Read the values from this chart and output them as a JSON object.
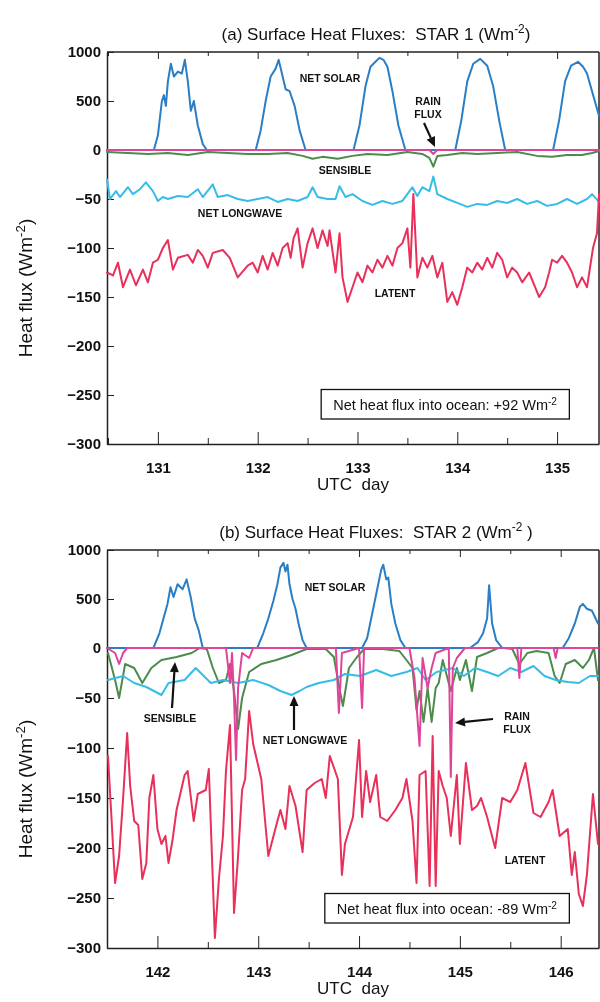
{
  "chart_data": [
    {
      "type": "line",
      "title": "(a) Surface Heat Fluxes:  STAR 1 (Wm$^{-2}$)",
      "tick_labels": "y",
      "xlim": [
        130.49,
        135.42
      ],
      "xticks": [
        {
          "value": 130.5,
          "label": null
        },
        131,
        {
          "value": 131.5,
          "label": null
        },
        132,
        {
          "value": 132.5,
          "label": null
        },
        133,
        {
          "value": 133.5,
          "label": null
        },
        134,
        {
          "value": 134.5,
          "label": null
        },
        135
      ],
      "ylim": [
        0,
        1000
      ],
      "yticks": [
        0,
        500,
        1000
      ],
      "series": [
        {
          "color": "#2a7ec6",
          "x": [
            130.49,
            130.96,
            131.0,
            131.04,
            131.06,
            131.08,
            131.1,
            131.13,
            131.16,
            131.2,
            131.24,
            131.27,
            131.3,
            131.33,
            131.36,
            131.4,
            131.45,
            131.49,
            131.98,
            132.03,
            132.08,
            132.13,
            132.18,
            132.21,
            132.25,
            132.28,
            132.32,
            132.37,
            132.42,
            132.48,
            132.96,
            133.02,
            133.08,
            133.13,
            133.18,
            133.22,
            133.26,
            133.3,
            133.35,
            133.41,
            133.48,
            133.98,
            134.04,
            134.1,
            134.16,
            134.23,
            134.3,
            134.36,
            134.42,
            134.48,
            134.96,
            135.02,
            135.08,
            135.14,
            135.21,
            135.26,
            135.3,
            135.35,
            135.42
          ],
          "values": [
            0,
            0,
            150,
            500,
            560,
            450,
            700,
            880,
            750,
            800,
            780,
            920,
            700,
            400,
            500,
            250,
            60,
            0,
            0,
            200,
            500,
            750,
            830,
            920,
            750,
            620,
            600,
            450,
            200,
            0,
            0,
            250,
            650,
            850,
            900,
            940,
            920,
            850,
            600,
            250,
            0,
            0,
            300,
            700,
            880,
            930,
            860,
            650,
            300,
            0,
            0,
            300,
            700,
            860,
            900,
            850,
            780,
            600,
            350
          ]
        }
      ],
      "annotations": [
        "NET SOLAR",
        "RAIN FLUX"
      ]
    },
    {
      "type": "line",
      "xlabel": "UTC  day",
      "ylabel": "Heat flux (Wm$^{-2}$)",
      "xlim": [
        130.49,
        135.42
      ],
      "xticks": [
        {
          "value": 130.5,
          "label": null
        },
        131,
        {
          "value": 131.5,
          "label": null
        },
        132,
        {
          "value": 132.5,
          "label": null
        },
        133,
        {
          "value": 133.5,
          "label": null
        },
        134,
        {
          "value": 134.5,
          "label": null
        },
        135
      ],
      "ylim": [
        -300,
        0
      ],
      "yticks": [
        -300,
        -250,
        -200,
        -150,
        -100,
        -50
      ],
      "series": [
        {
          "color": "#4b8b4b",
          "x": [
            130.49,
            130.7,
            130.9,
            131.1,
            131.3,
            131.5,
            131.7,
            131.9,
            132.1,
            132.3,
            132.45,
            132.55,
            132.65,
            132.8,
            132.95,
            133.1,
            133.3,
            133.5,
            133.65,
            133.72,
            133.76,
            133.8,
            133.9,
            134.05,
            134.2,
            134.4,
            134.6,
            134.8,
            134.95,
            135.1,
            135.25,
            135.35,
            135.42
          ],
          "values": [
            -2,
            -3,
            -4,
            -3,
            -5,
            -2,
            -3,
            -4,
            -4,
            -3,
            -6,
            -9,
            -7,
            -9,
            -6,
            -4,
            -5,
            -2,
            -4,
            -8,
            -17,
            -6,
            -5,
            -3,
            -4,
            -3,
            -2,
            -6,
            -7,
            -5,
            -5,
            -3,
            -1
          ]
        },
        {
          "color": "#35bde8",
          "x": [
            130.49,
            130.52,
            130.58,
            130.62,
            130.7,
            130.75,
            130.82,
            130.88,
            130.95,
            131.0,
            131.05,
            131.1,
            131.2,
            131.3,
            131.4,
            131.45,
            131.55,
            131.6,
            131.7,
            131.8,
            131.9,
            132.0,
            132.1,
            132.2,
            132.3,
            132.4,
            132.5,
            132.55,
            132.6,
            132.7,
            132.78,
            132.82,
            132.88,
            132.95,
            133.05,
            133.15,
            133.25,
            133.35,
            133.45,
            133.55,
            133.6,
            133.65,
            133.72,
            133.76,
            133.8,
            133.9,
            134.0,
            134.1,
            134.2,
            134.3,
            134.4,
            134.5,
            134.6,
            134.7,
            134.8,
            134.9,
            135.0,
            135.1,
            135.2,
            135.3,
            135.35,
            135.42
          ],
          "values": [
            -30,
            -50,
            -42,
            -48,
            -38,
            -45,
            -40,
            -33,
            -42,
            -52,
            -48,
            -50,
            -47,
            -48,
            -40,
            -48,
            -35,
            -48,
            -46,
            -50,
            -52,
            -50,
            -48,
            -53,
            -50,
            -52,
            -48,
            -38,
            -48,
            -50,
            -50,
            -37,
            -48,
            -45,
            -52,
            -56,
            -52,
            -55,
            -52,
            -38,
            -47,
            -38,
            -42,
            -27,
            -45,
            -50,
            -54,
            -58,
            -55,
            -56,
            -52,
            -54,
            -50,
            -55,
            -52,
            -57,
            -55,
            -50,
            -55,
            -50,
            -45,
            -53
          ]
        },
        {
          "color": "#e8305a",
          "x": [
            130.49,
            130.55,
            130.6,
            130.65,
            130.72,
            130.78,
            130.85,
            130.9,
            130.95,
            131.0,
            131.05,
            131.1,
            131.15,
            131.2,
            131.3,
            131.35,
            131.4,
            131.45,
            131.5,
            131.55,
            131.65,
            131.72,
            131.8,
            131.9,
            131.95,
            132.0,
            132.05,
            132.1,
            132.15,
            132.2,
            132.25,
            132.3,
            132.33,
            132.36,
            132.4,
            132.45,
            132.5,
            132.55,
            132.6,
            132.65,
            132.7,
            132.72,
            132.78,
            132.82,
            132.85,
            132.9,
            132.95,
            133.0,
            133.05,
            133.1,
            133.15,
            133.2,
            133.25,
            133.3,
            133.35,
            133.4,
            133.45,
            133.5,
            133.53,
            133.56,
            133.6,
            133.65,
            133.7,
            133.75,
            133.8,
            133.85,
            133.9,
            133.95,
            134.0,
            134.05,
            134.1,
            134.15,
            134.2,
            134.25,
            134.3,
            134.35,
            134.4,
            134.45,
            134.5,
            134.55,
            134.6,
            134.65,
            134.72,
            134.78,
            134.82,
            134.88,
            134.92,
            134.95,
            135.0,
            135.05,
            135.1,
            135.15,
            135.2,
            135.25,
            135.3,
            135.33,
            135.36,
            135.4,
            135.42
          ],
          "values": [
            -125,
            -128,
            -115,
            -140,
            -122,
            -138,
            -122,
            -135,
            -115,
            -112,
            -100,
            -92,
            -122,
            -110,
            -107,
            -115,
            -102,
            -108,
            -120,
            -105,
            -102,
            -110,
            -130,
            -118,
            -115,
            -125,
            -108,
            -122,
            -105,
            -118,
            -100,
            -95,
            -110,
            -90,
            -80,
            -120,
            -95,
            -80,
            -100,
            -82,
            -98,
            -82,
            -125,
            -85,
            -130,
            -155,
            -140,
            -125,
            -135,
            -118,
            -125,
            -112,
            -120,
            -108,
            -118,
            -100,
            -95,
            -80,
            -120,
            -45,
            -130,
            -110,
            -120,
            -108,
            -130,
            -115,
            -155,
            -145,
            -158,
            -140,
            -120,
            -125,
            -115,
            -122,
            -110,
            -120,
            -105,
            -112,
            -130,
            -120,
            -125,
            -135,
            -125,
            -140,
            -150,
            -140,
            -125,
            -112,
            -115,
            -108,
            -115,
            -125,
            -140,
            -130,
            -140,
            -120,
            -100,
            -85,
            -45
          ]
        },
        {
          "color": "#e0449a",
          "x": [
            130.49,
            131.0,
            131.5,
            132.0,
            132.5,
            133.0,
            133.5,
            133.72,
            133.76,
            133.8,
            134.0,
            134.5,
            135.0,
            135.42
          ],
          "values": [
            0,
            0,
            0,
            0,
            0,
            0,
            0,
            0,
            -4,
            0,
            0,
            0,
            0,
            0
          ]
        }
      ],
      "annotations": [
        "SENSIBLE",
        "NET LONGWAVE",
        "LATENT",
        "Net heat flux into ocean: +92 Wm$^{-2}$"
      ]
    },
    {
      "type": "line",
      "title": "(b) Surface Heat Fluxes:  STAR 2 (Wm$^{-2}$ )",
      "tick_labels": "y",
      "xlim": [
        141.5,
        146.38
      ],
      "xticks": [
        {
          "value": 141.5,
          "label": null
        },
        142,
        {
          "value": 142.5,
          "label": null
        },
        143,
        {
          "value": 143.5,
          "label": null
        },
        144,
        {
          "value": 144.5,
          "label": null
        },
        145,
        {
          "value": 145.5,
          "label": null
        },
        146
      ],
      "ylim": [
        0,
        1000
      ],
      "yticks": [
        0,
        500,
        1000
      ],
      "series": [
        {
          "color": "#2a7ec6",
          "x": [
            141.5,
            141.96,
            142.02,
            142.06,
            142.1,
            142.13,
            142.16,
            142.2,
            142.25,
            142.29,
            142.33,
            142.37,
            142.41,
            142.45,
            142.99,
            143.05,
            143.1,
            143.15,
            143.19,
            143.22,
            143.25,
            143.27,
            143.29,
            143.31,
            143.34,
            143.37,
            143.4,
            143.44,
            143.48,
            144.03,
            144.08,
            144.13,
            144.18,
            144.22,
            144.24,
            144.27,
            144.29,
            144.32,
            144.36,
            144.41,
            144.46,
            145.1,
            145.18,
            145.23,
            145.27,
            145.29,
            145.32,
            145.36,
            145.42,
            146.02,
            146.08,
            146.14,
            146.19,
            146.22,
            146.26,
            146.31,
            146.37
          ],
          "values": [
            0,
            0,
            150,
            300,
            450,
            620,
            520,
            650,
            600,
            700,
            520,
            300,
            180,
            0,
            0,
            150,
            300,
            480,
            650,
            820,
            870,
            780,
            850,
            650,
            500,
            400,
            250,
            80,
            0,
            0,
            100,
            350,
            600,
            800,
            850,
            700,
            720,
            450,
            250,
            80,
            0,
            0,
            60,
            150,
            300,
            640,
            250,
            80,
            0,
            0,
            100,
            250,
            420,
            450,
            400,
            380,
            250
          ]
        }
      ],
      "annotations": [
        "NET SOLAR"
      ]
    },
    {
      "type": "line",
      "xlabel": "UTC  day",
      "ylabel": "Heat flux (Wm$^{-2}$)",
      "xlim": [
        141.5,
        146.38
      ],
      "xticks": [
        {
          "value": 141.5,
          "label": null
        },
        142,
        {
          "value": 142.5,
          "label": null
        },
        143,
        {
          "value": 143.5,
          "label": null
        },
        144,
        {
          "value": 144.5,
          "label": null
        },
        145,
        {
          "value": 145.5,
          "label": null
        },
        146
      ],
      "ylim": [
        -300,
        0
      ],
      "yticks": [
        -300,
        -250,
        -200,
        -150,
        -100,
        -50
      ],
      "series": [
        {
          "color": "#4b8b4b",
          "x": [
            141.51,
            141.58,
            141.62,
            141.68,
            141.77,
            141.85,
            141.94,
            142.04,
            142.19,
            142.34,
            142.42,
            142.49,
            142.55,
            142.61,
            142.68,
            142.72,
            142.76,
            142.8,
            142.84,
            142.91,
            143.03,
            143.18,
            143.33,
            143.48,
            143.67,
            143.75,
            143.81,
            143.84,
            143.9,
            143.98,
            144.05,
            144.24,
            144.4,
            144.47,
            144.53,
            144.57,
            144.6,
            144.64,
            144.68,
            144.72,
            144.76,
            144.79,
            144.83,
            144.91,
            144.97,
            145.0,
            145.06,
            145.12,
            145.17,
            145.27,
            145.38,
            145.44,
            145.52,
            145.59,
            145.67,
            145.76,
            145.88,
            145.94,
            145.99,
            146.05,
            146.14,
            146.22,
            146.28,
            146.33,
            146.37
          ],
          "values": [
            -5,
            -32,
            -50,
            -16,
            -20,
            -35,
            -20,
            -12,
            -9,
            -5,
            0,
            -1,
            -20,
            -35,
            -32,
            -16,
            -43,
            -81,
            -50,
            -24,
            -16,
            -12,
            -7,
            -1,
            -1,
            -9,
            -43,
            -58,
            -20,
            -9,
            -1,
            -1,
            -3,
            -12,
            -20,
            -62,
            -43,
            -74,
            -40,
            -74,
            -40,
            -35,
            -12,
            -43,
            -20,
            -32,
            -12,
            -43,
            -9,
            -5,
            0,
            0,
            -1,
            -16,
            -5,
            -3,
            -5,
            -28,
            -35,
            -16,
            -12,
            -20,
            -12,
            0,
            -32
          ]
        },
        {
          "color": "#35bde8",
          "x": [
            141.51,
            141.66,
            141.77,
            141.89,
            142.04,
            142.11,
            142.27,
            142.38,
            142.46,
            142.53,
            142.65,
            142.8,
            142.95,
            143.1,
            143.22,
            143.33,
            143.41,
            143.48,
            143.6,
            143.75,
            143.86,
            144.01,
            144.17,
            144.32,
            144.47,
            144.58,
            144.66,
            144.77,
            144.93,
            145.04,
            145.15,
            145.27,
            145.38,
            145.5,
            145.61,
            145.73,
            145.84,
            145.95,
            146.07,
            146.18,
            146.29,
            146.37
          ],
          "values": [
            -32,
            -28,
            -35,
            -39,
            -47,
            -35,
            -32,
            -20,
            -28,
            -35,
            -32,
            -35,
            -32,
            -37,
            -43,
            -47,
            -43,
            -39,
            -35,
            -32,
            -26,
            -28,
            -22,
            -28,
            -24,
            -20,
            -32,
            -24,
            -20,
            -28,
            -20,
            -24,
            -28,
            -20,
            -24,
            -18,
            -28,
            -32,
            -34,
            -35,
            -28,
            -28
          ]
        },
        {
          "color": "#e8305a",
          "x": [
            141.51,
            141.54,
            141.58,
            141.62,
            141.66,
            141.7,
            141.73,
            141.77,
            141.81,
            141.85,
            141.89,
            141.92,
            141.96,
            142.0,
            142.04,
            142.08,
            142.11,
            142.15,
            142.19,
            142.27,
            142.3,
            142.36,
            142.4,
            142.48,
            142.51,
            142.57,
            142.61,
            142.65,
            142.68,
            142.72,
            142.76,
            142.8,
            142.84,
            142.87,
            142.91,
            142.95,
            143.03,
            143.1,
            143.18,
            143.22,
            143.27,
            143.31,
            143.37,
            143.44,
            143.48,
            143.56,
            143.63,
            143.67,
            143.71,
            143.79,
            143.83,
            143.86,
            143.94,
            144.0,
            144.03,
            144.07,
            144.11,
            144.17,
            144.21,
            144.28,
            144.36,
            144.43,
            144.47,
            144.53,
            144.57,
            144.6,
            144.66,
            144.7,
            144.73,
            144.76,
            144.79,
            144.83,
            144.87,
            144.91,
            144.97,
            145.0,
            145.06,
            145.12,
            145.17,
            145.21,
            145.27,
            145.35,
            145.42,
            145.5,
            145.57,
            145.65,
            145.73,
            145.8,
            145.88,
            145.92,
            145.99,
            146.07,
            146.11,
            146.14,
            146.18,
            146.22,
            146.26,
            146.32,
            146.37
          ],
          "values": [
            -108,
            -162,
            -235,
            -208,
            -150,
            -85,
            -138,
            -173,
            -177,
            -231,
            -215,
            -150,
            -127,
            -181,
            -196,
            -188,
            -215,
            -192,
            -162,
            -127,
            -123,
            -173,
            -146,
            -142,
            -121,
            -290,
            -231,
            -188,
            -123,
            -77,
            -265,
            -208,
            -142,
            -131,
            -63,
            -96,
            -131,
            -208,
            -177,
            -162,
            -181,
            -138,
            -158,
            -204,
            -142,
            -135,
            -131,
            -150,
            -108,
            -131,
            -227,
            -196,
            -169,
            -92,
            -169,
            -123,
            -154,
            -127,
            -169,
            -173,
            -162,
            -150,
            -131,
            -173,
            -235,
            -127,
            -123,
            -238,
            -88,
            -238,
            -123,
            -138,
            -150,
            -188,
            -127,
            -196,
            -115,
            -162,
            -158,
            -150,
            -169,
            -200,
            -150,
            -154,
            -142,
            -115,
            -165,
            -169,
            -154,
            -142,
            -188,
            -181,
            -227,
            -204,
            -246,
            -258,
            -227,
            -146,
            -196
          ]
        },
        {
          "color": "#e0449a",
          "x": [
            141.5,
            141.58,
            141.62,
            141.66,
            141.7,
            142.68,
            142.72,
            142.74,
            142.76,
            142.78,
            142.8,
            142.84,
            142.91,
            142.95,
            143.77,
            143.8,
            143.83,
            144.0,
            144.03,
            144.05,
            144.5,
            144.55,
            144.6,
            144.63,
            144.68,
            144.72,
            144.76,
            144.89,
            144.91,
            144.93,
            144.97,
            145.05,
            145.57,
            145.59,
            145.61,
            145.93,
            145.95,
            145.97,
            146.37
          ],
          "values": [
            0,
            -5,
            -16,
            -5,
            0,
            0,
            -35,
            -5,
            -50,
            -112,
            -40,
            -5,
            -10,
            0,
            0,
            -65,
            -5,
            0,
            -60,
            0,
            0,
            -30,
            -98,
            -10,
            -40,
            -20,
            -5,
            0,
            -129,
            -20,
            -10,
            0,
            0,
            -30,
            0,
            0,
            -10,
            0,
            0
          ]
        }
      ],
      "annotations": [
        "SENSIBLE",
        "NET LONGWAVE",
        "RAIN FLUX",
        "LATENT",
        "Net heat flux into ocean: -89 Wm$^{-2}$"
      ]
    }
  ]
}
